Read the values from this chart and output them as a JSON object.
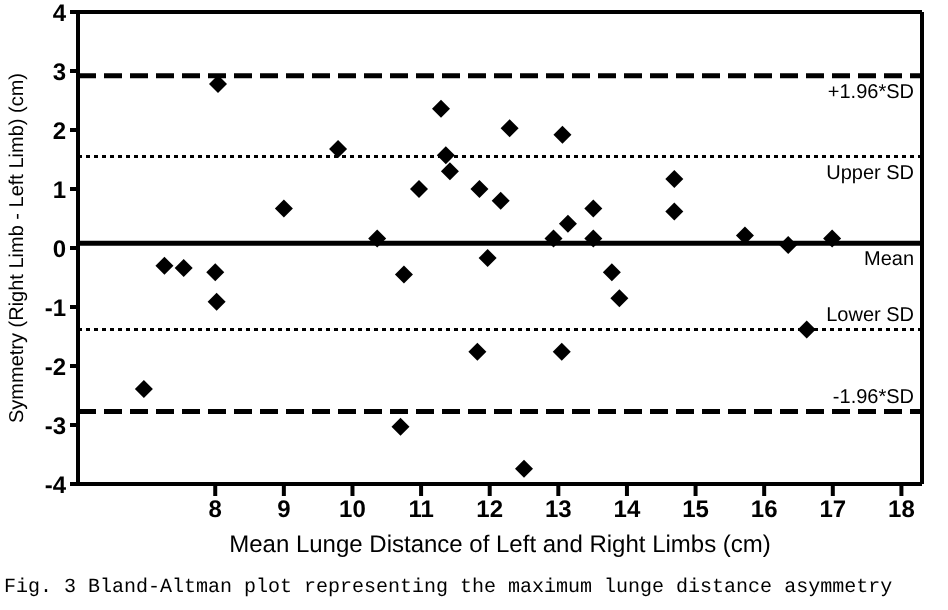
{
  "chart_data": {
    "type": "scatter",
    "xlabel": "Mean Lunge Distance of Left and Right Limbs (cm)",
    "ylabel": "Symmetry (Right Limb - Left Limb) (cm)",
    "x": [
      8.04,
      9.0,
      9.79,
      10.36,
      10.97,
      11.29,
      11.36,
      11.42,
      11.85,
      12.16,
      12.29,
      12.93,
      13.06,
      13.14,
      13.51,
      13.51,
      14.69,
      14.69,
      15.72,
      16.35,
      16.99,
      7.26,
      7.54,
      8.0,
      10.75,
      11.97,
      13.78,
      8.02,
      13.89,
      16.62,
      11.82,
      13.05,
      6.96,
      10.7,
      12.5
    ],
    "values": [
      2.78,
      0.67,
      1.68,
      0.16,
      1.0,
      2.36,
      1.57,
      1.3,
      1.0,
      0.8,
      2.03,
      0.16,
      1.92,
      0.41,
      0.67,
      0.16,
      1.17,
      0.62,
      0.21,
      0.05,
      0.16,
      -0.3,
      -0.34,
      -0.41,
      -0.45,
      -0.17,
      -0.41,
      -0.91,
      -0.85,
      -1.38,
      -1.76,
      -1.76,
      -2.39,
      -3.03,
      -3.74
    ],
    "color": "#000000",
    "marker": "diamond",
    "grid": false,
    "legend": false,
    "xlim": [
      6,
      18.3
    ],
    "xticks": [
      8,
      9,
      10,
      11,
      12,
      13,
      14,
      15,
      16,
      17,
      18
    ],
    "ylim": [
      -4,
      4
    ],
    "yticks": [
      -4,
      -3,
      -2,
      -1,
      0,
      1,
      2,
      3,
      4
    ],
    "ref_lines": [
      {
        "axis": "y",
        "value": 2.92,
        "label": "+1.96*SD",
        "line_style": "dashed",
        "color": "#000000"
      },
      {
        "axis": "y",
        "value": 1.55,
        "label": "Upper SD",
        "line_style": "dotted",
        "color": "#000000"
      },
      {
        "axis": "y",
        "value": 0.08,
        "label": "Mean",
        "line_style": "solid",
        "color": "#000000"
      },
      {
        "axis": "y",
        "value": -1.38,
        "label": "Lower SD",
        "line_style": "dotted",
        "color": "#000000"
      },
      {
        "axis": "y",
        "value": -2.77,
        "label": "-1.96*SD",
        "line_style": "dashed",
        "color": "#000000"
      }
    ],
    "annotations": [
      "Fig. 3 Bland-Altman plot representing the maximum lunge distance asymmetry"
    ]
  }
}
